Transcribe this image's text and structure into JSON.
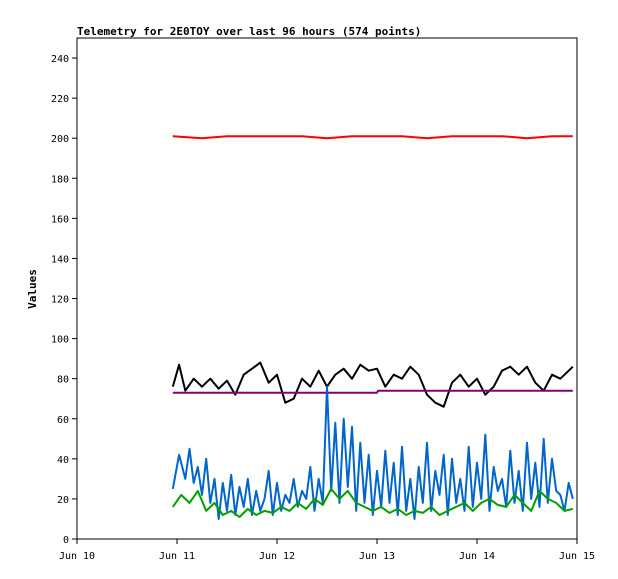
{
  "chart_data": {
    "type": "line",
    "title": "Telemetry for 2E0TOY over last 96 hours (574 points)",
    "xlabel": "",
    "ylabel": "Values",
    "xlim": [
      "2024-06-10T00:00",
      "2024-06-15T00:00"
    ],
    "ylim": [
      0,
      250
    ],
    "x_ticks": [
      "Jun 10",
      "Jun 11",
      "Jun 12",
      "Jun 13",
      "Jun 14",
      "Jun 15"
    ],
    "y_ticks": [
      0,
      20,
      40,
      60,
      80,
      100,
      120,
      140,
      160,
      180,
      200,
      220,
      240
    ],
    "grid": false,
    "legend": "none",
    "series": [
      {
        "color": "#ff0000",
        "x": [
          "2024-06-10T23:00",
          "2024-06-11T06:00",
          "2024-06-11T12:00",
          "2024-06-11T18:00",
          "2024-06-12T00:00",
          "2024-06-12T06:00",
          "2024-06-12T12:00",
          "2024-06-12T18:00",
          "2024-06-13T00:00",
          "2024-06-13T06:00",
          "2024-06-13T12:00",
          "2024-06-13T18:00",
          "2024-06-14T00:00",
          "2024-06-14T06:00",
          "2024-06-14T12:00",
          "2024-06-14T18:00",
          "2024-06-14T23:00"
        ],
        "values": [
          201,
          200,
          201,
          201,
          201,
          201,
          200,
          201,
          201,
          201,
          200,
          201,
          201,
          201,
          200,
          201,
          201
        ]
      },
      {
        "color": "#000000",
        "x": [
          "2024-06-10T23:00",
          "2024-06-11T00:30",
          "2024-06-11T02:00",
          "2024-06-11T04:00",
          "2024-06-11T06:00",
          "2024-06-11T08:00",
          "2024-06-11T10:00",
          "2024-06-11T12:00",
          "2024-06-11T14:00",
          "2024-06-11T16:00",
          "2024-06-11T18:00",
          "2024-06-11T20:00",
          "2024-06-11T22:00",
          "2024-06-12T00:00",
          "2024-06-12T02:00",
          "2024-06-12T04:00",
          "2024-06-12T06:00",
          "2024-06-12T08:00",
          "2024-06-12T10:00",
          "2024-06-12T12:00",
          "2024-06-12T14:00",
          "2024-06-12T16:00",
          "2024-06-12T18:00",
          "2024-06-12T20:00",
          "2024-06-12T22:00",
          "2024-06-13T00:00",
          "2024-06-13T02:00",
          "2024-06-13T04:00",
          "2024-06-13T06:00",
          "2024-06-13T08:00",
          "2024-06-13T10:00",
          "2024-06-13T12:00",
          "2024-06-13T14:00",
          "2024-06-13T16:00",
          "2024-06-13T18:00",
          "2024-06-13T20:00",
          "2024-06-13T22:00",
          "2024-06-14T00:00",
          "2024-06-14T02:00",
          "2024-06-14T04:00",
          "2024-06-14T06:00",
          "2024-06-14T08:00",
          "2024-06-14T10:00",
          "2024-06-14T12:00",
          "2024-06-14T14:00",
          "2024-06-14T16:00",
          "2024-06-14T18:00",
          "2024-06-14T20:00",
          "2024-06-14T22:00",
          "2024-06-14T23:00"
        ],
        "values": [
          76,
          87,
          74,
          80,
          76,
          80,
          75,
          79,
          72,
          82,
          85,
          88,
          78,
          82,
          68,
          70,
          80,
          76,
          84,
          76,
          82,
          85,
          80,
          87,
          84,
          85,
          76,
          82,
          80,
          86,
          82,
          72,
          68,
          66,
          78,
          82,
          76,
          80,
          72,
          76,
          84,
          86,
          82,
          86,
          78,
          74,
          82,
          80,
          84,
          86
        ]
      },
      {
        "color": "#800080",
        "x": [
          "2024-06-10T23:00",
          "2024-06-13T00:00",
          "2024-06-13T00:15",
          "2024-06-14T23:00"
        ],
        "values": [
          73,
          73,
          74,
          74
        ]
      },
      {
        "color": "#0066cc",
        "x": [
          "2024-06-10T23:00",
          "2024-06-11T00:30",
          "2024-06-11T02:00",
          "2024-06-11T03:00",
          "2024-06-11T04:00",
          "2024-06-11T05:00",
          "2024-06-11T06:00",
          "2024-06-11T07:00",
          "2024-06-11T08:00",
          "2024-06-11T09:00",
          "2024-06-11T10:00",
          "2024-06-11T11:00",
          "2024-06-11T12:00",
          "2024-06-11T13:00",
          "2024-06-11T14:00",
          "2024-06-11T15:00",
          "2024-06-11T16:00",
          "2024-06-11T17:00",
          "2024-06-11T18:00",
          "2024-06-11T19:00",
          "2024-06-11T20:00",
          "2024-06-11T21:00",
          "2024-06-11T22:00",
          "2024-06-11T23:00",
          "2024-06-12T00:00",
          "2024-06-12T01:00",
          "2024-06-12T02:00",
          "2024-06-12T03:00",
          "2024-06-12T04:00",
          "2024-06-12T05:00",
          "2024-06-12T06:00",
          "2024-06-12T07:00",
          "2024-06-12T08:00",
          "2024-06-12T09:00",
          "2024-06-12T10:00",
          "2024-06-12T11:00",
          "2024-06-12T12:00",
          "2024-06-12T13:00",
          "2024-06-12T14:00",
          "2024-06-12T15:00",
          "2024-06-12T16:00",
          "2024-06-12T17:00",
          "2024-06-12T18:00",
          "2024-06-12T19:00",
          "2024-06-12T20:00",
          "2024-06-12T21:00",
          "2024-06-12T22:00",
          "2024-06-12T23:00",
          "2024-06-13T00:00",
          "2024-06-13T01:00",
          "2024-06-13T02:00",
          "2024-06-13T03:00",
          "2024-06-13T04:00",
          "2024-06-13T05:00",
          "2024-06-13T06:00",
          "2024-06-13T07:00",
          "2024-06-13T08:00",
          "2024-06-13T09:00",
          "2024-06-13T10:00",
          "2024-06-13T11:00",
          "2024-06-13T12:00",
          "2024-06-13T13:00",
          "2024-06-13T14:00",
          "2024-06-13T15:00",
          "2024-06-13T16:00",
          "2024-06-13T17:00",
          "2024-06-13T18:00",
          "2024-06-13T19:00",
          "2024-06-13T20:00",
          "2024-06-13T21:00",
          "2024-06-13T22:00",
          "2024-06-13T23:00",
          "2024-06-14T00:00",
          "2024-06-14T01:00",
          "2024-06-14T02:00",
          "2024-06-14T03:00",
          "2024-06-14T04:00",
          "2024-06-14T05:00",
          "2024-06-14T06:00",
          "2024-06-14T07:00",
          "2024-06-14T08:00",
          "2024-06-14T09:00",
          "2024-06-14T10:00",
          "2024-06-14T11:00",
          "2024-06-14T12:00",
          "2024-06-14T13:00",
          "2024-06-14T14:00",
          "2024-06-14T15:00",
          "2024-06-14T16:00",
          "2024-06-14T17:00",
          "2024-06-14T18:00",
          "2024-06-14T19:00",
          "2024-06-14T20:00",
          "2024-06-14T21:00",
          "2024-06-14T22:00",
          "2024-06-14T23:00"
        ],
        "values": [
          25,
          42,
          30,
          45,
          28,
          36,
          22,
          40,
          18,
          30,
          10,
          28,
          14,
          32,
          12,
          26,
          16,
          30,
          12,
          24,
          14,
          20,
          34,
          12,
          28,
          14,
          22,
          18,
          30,
          16,
          24,
          20,
          36,
          14,
          30,
          18,
          76,
          24,
          58,
          18,
          60,
          26,
          56,
          14,
          48,
          18,
          42,
          12,
          34,
          16,
          44,
          18,
          38,
          12,
          46,
          14,
          30,
          10,
          36,
          18,
          48,
          14,
          34,
          22,
          42,
          12,
          40,
          18,
          30,
          14,
          46,
          16,
          38,
          20,
          52,
          14,
          36,
          24,
          30,
          16,
          44,
          18,
          34,
          14,
          48,
          20,
          38,
          16,
          50,
          18,
          40,
          24,
          22,
          14,
          28,
          20
        ]
      },
      {
        "color": "#00a000",
        "x": [
          "2024-06-10T23:00",
          "2024-06-11T01:00",
          "2024-06-11T03:00",
          "2024-06-11T05:00",
          "2024-06-11T07:00",
          "2024-06-11T09:00",
          "2024-06-11T11:00",
          "2024-06-11T13:00",
          "2024-06-11T15:00",
          "2024-06-11T17:00",
          "2024-06-11T19:00",
          "2024-06-11T21:00",
          "2024-06-11T23:00",
          "2024-06-12T01:00",
          "2024-06-12T03:00",
          "2024-06-12T05:00",
          "2024-06-12T07:00",
          "2024-06-12T09:00",
          "2024-06-12T11:00",
          "2024-06-12T13:00",
          "2024-06-12T15:00",
          "2024-06-12T17:00",
          "2024-06-12T19:00",
          "2024-06-12T21:00",
          "2024-06-12T23:00",
          "2024-06-13T01:00",
          "2024-06-13T03:00",
          "2024-06-13T05:00",
          "2024-06-13T07:00",
          "2024-06-13T09:00",
          "2024-06-13T11:00",
          "2024-06-13T13:00",
          "2024-06-13T15:00",
          "2024-06-13T17:00",
          "2024-06-13T19:00",
          "2024-06-13T21:00",
          "2024-06-13T23:00",
          "2024-06-14T01:00",
          "2024-06-14T03:00",
          "2024-06-14T05:00",
          "2024-06-14T07:00",
          "2024-06-14T09:00",
          "2024-06-14T11:00",
          "2024-06-14T13:00",
          "2024-06-14T15:00",
          "2024-06-14T17:00",
          "2024-06-14T19:00",
          "2024-06-14T21:00",
          "2024-06-14T23:00"
        ],
        "values": [
          16,
          22,
          18,
          24,
          14,
          18,
          12,
          14,
          11,
          15,
          12,
          14,
          13,
          16,
          14,
          18,
          15,
          20,
          17,
          25,
          20,
          24,
          18,
          16,
          14,
          16,
          13,
          15,
          12,
          14,
          13,
          16,
          12,
          14,
          16,
          18,
          14,
          18,
          20,
          17,
          16,
          22,
          18,
          14,
          24,
          20,
          18,
          14,
          15
        ]
      }
    ]
  }
}
